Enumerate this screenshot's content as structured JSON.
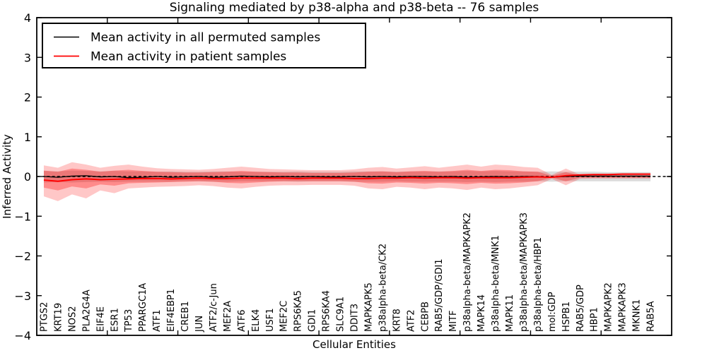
{
  "chart_data": {
    "type": "line",
    "title": "Signaling mediated by p38-alpha and p38-beta -- 76 samples",
    "xlabel": "Cellular Entities",
    "ylabel": "Inferred Activity",
    "xlim": [
      0,
      45
    ],
    "ylim": [
      -4,
      4
    ],
    "yticks": [
      4,
      3,
      2,
      1,
      0,
      -1,
      -2,
      -3,
      -4
    ],
    "xticks": [
      5,
      10,
      15,
      20,
      25,
      30,
      35,
      40
    ],
    "grid": false,
    "legend_position": "upper left",
    "zero_line": {
      "y": 0,
      "style": "dashed",
      "color": "#000000"
    },
    "categories": [
      "PTGS2",
      "KRT19",
      "NOS2",
      "PLA2G4A",
      "EIF4E",
      "ESR1",
      "TP53",
      "PPARGC1A",
      "ATF1",
      "EIF4EBP1",
      "CREB1",
      "JUN",
      "ATF2/c-Jun",
      "MEF2A",
      "ATF6",
      "ELK4",
      "USF1",
      "MEF2C",
      "RPS6KA5",
      "GDI1",
      "RPS6KA4",
      "SLC9A1",
      "DDIT3",
      "MAPKAPK5",
      "p38alpha-beta/CK2",
      "KRT8",
      "ATF2",
      "CEBPB",
      "RAB5/GDP/GDI1",
      "MITF",
      "p38alpha-beta/MAPKAPK2",
      "MAPK14",
      "p38alpha-beta/MNK1",
      "MAPK11",
      "p38alpha-beta/MAPKAPK3",
      "p38alpha-beta/HBP1",
      "mol:GDP",
      "HSPB1",
      "RAB5/GDP",
      "HBP1",
      "MAPKAPK2",
      "MAPKAPK3",
      "MKNK1",
      "RAB5A"
    ],
    "series": [
      {
        "name": "Mean activity in all permuted samples",
        "color": "#000000",
        "values": [
          0.0,
          -0.02,
          0.01,
          0.02,
          -0.01,
          0.0,
          -0.03,
          -0.02,
          0.0,
          -0.02,
          -0.01,
          0.0,
          -0.02,
          -0.01,
          0.01,
          0.0,
          -0.01,
          0.0,
          -0.01,
          0.0,
          -0.01,
          -0.01,
          0.0,
          -0.01,
          0.0,
          -0.01,
          0.0,
          0.0,
          -0.01,
          0.0,
          -0.02,
          -0.01,
          0.0,
          -0.01,
          0.0,
          0.0,
          -0.02,
          0.0,
          0.01,
          0.01,
          0.01,
          0.01,
          0.01,
          0.01
        ]
      },
      {
        "name": "Mean activity in patient samples",
        "color": "#ff0000",
        "values": [
          -0.09,
          -0.12,
          -0.08,
          -0.06,
          -0.08,
          -0.07,
          -0.06,
          -0.05,
          -0.05,
          -0.06,
          -0.05,
          -0.04,
          -0.05,
          -0.05,
          -0.04,
          -0.04,
          -0.04,
          -0.04,
          -0.05,
          -0.04,
          -0.04,
          -0.04,
          -0.05,
          -0.05,
          -0.04,
          -0.04,
          -0.03,
          -0.04,
          -0.03,
          -0.03,
          -0.04,
          -0.03,
          -0.03,
          -0.03,
          -0.02,
          -0.01,
          -0.02,
          0.02,
          0.04,
          0.05,
          0.05,
          0.06,
          0.06,
          0.06
        ]
      }
    ],
    "bands": [
      {
        "name": "permuted-range",
        "color": "#999999",
        "opacity": 0.35,
        "upper": [
          0.14,
          0.13,
          0.15,
          0.14,
          0.13,
          0.14,
          0.13,
          0.13,
          0.12,
          0.13,
          0.12,
          0.12,
          0.13,
          0.13,
          0.12,
          0.12,
          0.12,
          0.12,
          0.13,
          0.12,
          0.12,
          0.12,
          0.13,
          0.13,
          0.13,
          0.12,
          0.13,
          0.13,
          0.13,
          0.13,
          0.14,
          0.13,
          0.14,
          0.13,
          0.13,
          0.12,
          0.13,
          0.12,
          0.12,
          0.12,
          0.11,
          0.11,
          0.11,
          0.11
        ],
        "lower": [
          -0.15,
          -0.14,
          -0.15,
          -0.14,
          -0.13,
          -0.14,
          -0.13,
          -0.13,
          -0.13,
          -0.13,
          -0.12,
          -0.12,
          -0.13,
          -0.13,
          -0.12,
          -0.12,
          -0.12,
          -0.12,
          -0.13,
          -0.12,
          -0.12,
          -0.12,
          -0.13,
          -0.13,
          -0.13,
          -0.12,
          -0.13,
          -0.13,
          -0.13,
          -0.13,
          -0.14,
          -0.13,
          -0.14,
          -0.13,
          -0.13,
          -0.12,
          -0.13,
          -0.12,
          -0.12,
          -0.12,
          -0.12,
          -0.12,
          -0.12,
          -0.12
        ]
      },
      {
        "name": "patient-range-outer",
        "color": "#ff0000",
        "opacity": 0.22,
        "upper": [
          0.28,
          0.22,
          0.36,
          0.3,
          0.22,
          0.27,
          0.3,
          0.25,
          0.21,
          0.19,
          0.18,
          0.17,
          0.19,
          0.22,
          0.25,
          0.22,
          0.19,
          0.18,
          0.17,
          0.16,
          0.16,
          0.16,
          0.18,
          0.22,
          0.24,
          0.2,
          0.23,
          0.26,
          0.22,
          0.26,
          0.3,
          0.25,
          0.3,
          0.28,
          0.24,
          0.22,
          0.04,
          0.2,
          0.05,
          0.05,
          0.05,
          0.05,
          0.05,
          0.05
        ],
        "lower": [
          -0.5,
          -0.62,
          -0.45,
          -0.55,
          -0.35,
          -0.42,
          -0.3,
          -0.28,
          -0.26,
          -0.25,
          -0.24,
          -0.22,
          -0.24,
          -0.28,
          -0.3,
          -0.26,
          -0.23,
          -0.22,
          -0.22,
          -0.21,
          -0.21,
          -0.21,
          -0.23,
          -0.3,
          -0.32,
          -0.26,
          -0.28,
          -0.32,
          -0.28,
          -0.3,
          -0.34,
          -0.28,
          -0.32,
          -0.3,
          -0.26,
          -0.22,
          -0.06,
          -0.22,
          -0.06,
          -0.05,
          -0.05,
          -0.05,
          -0.05,
          -0.05
        ]
      },
      {
        "name": "patient-range-inner",
        "color": "#ff0000",
        "opacity": 0.3,
        "upper": [
          0.15,
          0.12,
          0.2,
          0.17,
          0.12,
          0.15,
          0.17,
          0.14,
          0.12,
          0.11,
          0.1,
          0.1,
          0.11,
          0.12,
          0.14,
          0.12,
          0.11,
          0.1,
          0.1,
          0.09,
          0.09,
          0.09,
          0.1,
          0.12,
          0.13,
          0.11,
          0.13,
          0.14,
          0.12,
          0.14,
          0.17,
          0.14,
          0.17,
          0.16,
          0.13,
          0.12,
          0.02,
          0.11,
          0.03,
          0.03,
          0.03,
          0.03,
          0.03,
          0.03
        ],
        "lower": [
          -0.28,
          -0.35,
          -0.25,
          -0.3,
          -0.2,
          -0.23,
          -0.17,
          -0.16,
          -0.15,
          -0.14,
          -0.13,
          -0.12,
          -0.13,
          -0.16,
          -0.17,
          -0.15,
          -0.13,
          -0.12,
          -0.12,
          -0.12,
          -0.12,
          -0.12,
          -0.13,
          -0.17,
          -0.18,
          -0.15,
          -0.16,
          -0.18,
          -0.16,
          -0.17,
          -0.19,
          -0.16,
          -0.18,
          -0.17,
          -0.15,
          -0.12,
          -0.03,
          -0.12,
          -0.03,
          -0.03,
          -0.03,
          -0.03,
          -0.03,
          -0.03
        ]
      }
    ]
  }
}
